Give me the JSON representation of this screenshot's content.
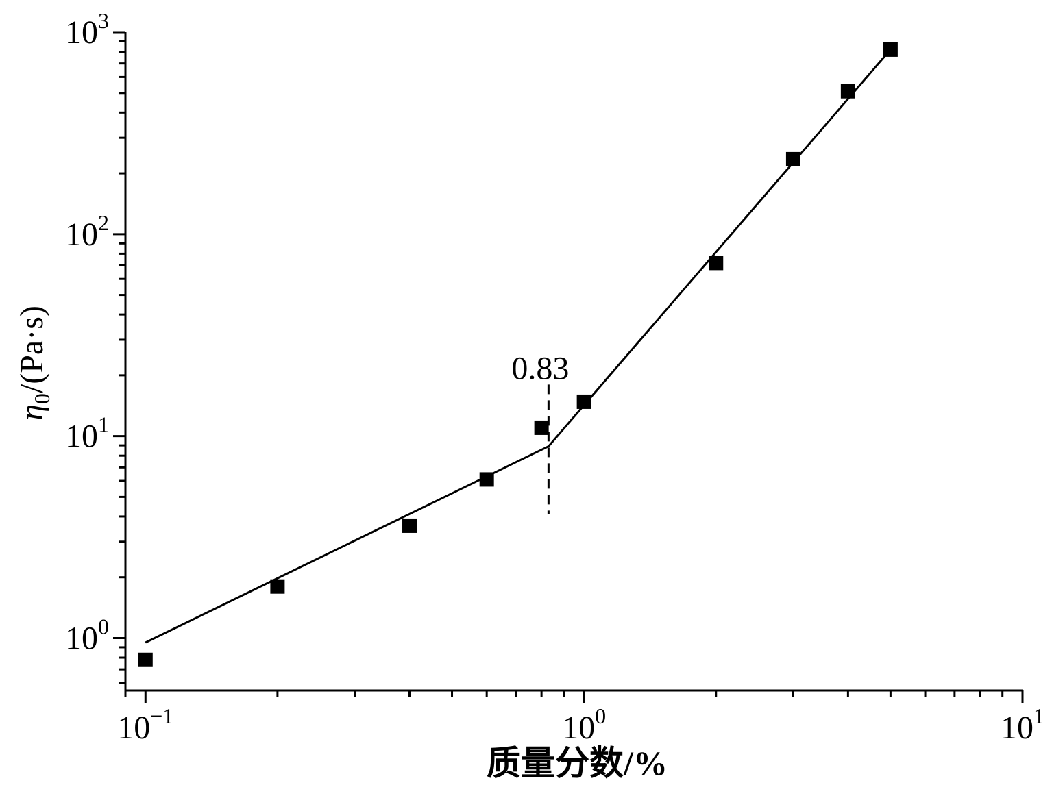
{
  "chart_data": {
    "type": "scatter",
    "title": "",
    "xlabel": "质量分数/%",
    "ylabel": {
      "symbol": "η",
      "subscript": "0",
      "unit": "/(Pa·s)"
    },
    "xscale": "log",
    "yscale": "log",
    "xlim": [
      0.09,
      10
    ],
    "ylim": [
      0.55,
      1000
    ],
    "grid": false,
    "x_ticks": [
      {
        "value": 0.1,
        "base": "10",
        "exp": "−1"
      },
      {
        "value": 1,
        "base": "10",
        "exp": "0"
      },
      {
        "value": 10,
        "base": "10",
        "exp": "1"
      }
    ],
    "y_ticks": [
      {
        "value": 1,
        "base": "10",
        "exp": "0"
      },
      {
        "value": 10,
        "base": "10",
        "exp": "1"
      },
      {
        "value": 100,
        "base": "10",
        "exp": "2"
      },
      {
        "value": 1000,
        "base": "10",
        "exp": "3"
      }
    ],
    "series": [
      {
        "marker": "square",
        "color": "#000000",
        "x": [
          0.1,
          0.2,
          0.4,
          0.6,
          0.8,
          1.0,
          2.0,
          3.0,
          4.0,
          5.0
        ],
        "y": [
          0.78,
          1.8,
          3.6,
          6.1,
          11.0,
          14.8,
          72,
          235,
          510,
          820
        ]
      }
    ],
    "fit_line": {
      "color": "#000000",
      "x": [
        0.1,
        0.83,
        5.0
      ],
      "y": [
        0.95,
        8.9,
        820
      ]
    },
    "annotation": {
      "text": "0.83",
      "x": 0.83,
      "line_y": [
        4.1,
        18
      ],
      "style": "dashed"
    }
  }
}
